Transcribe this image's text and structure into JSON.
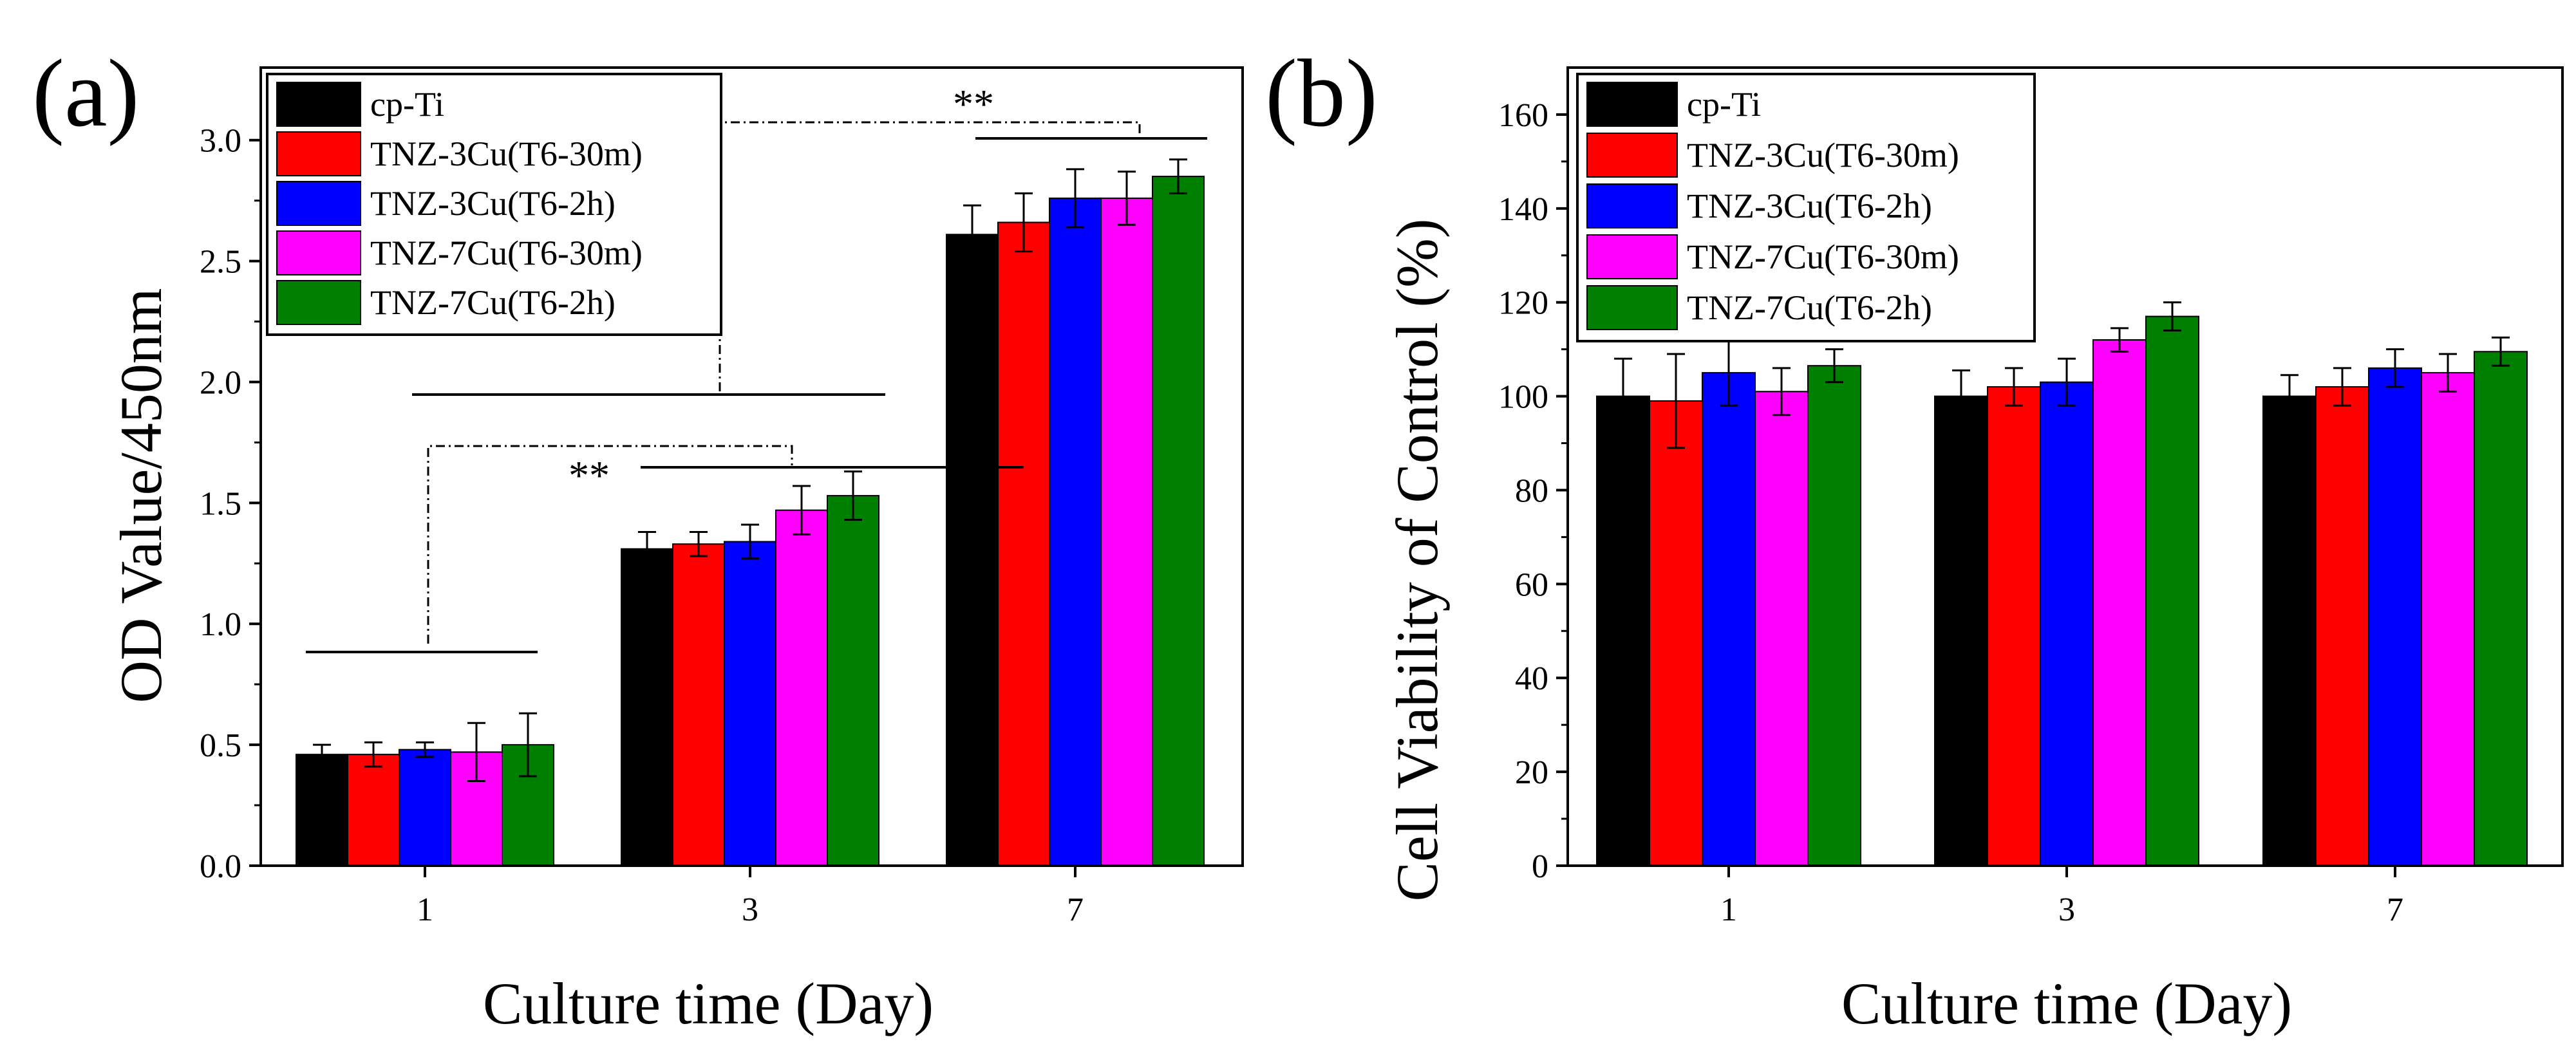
{
  "chart_data": [
    {
      "type": "bar",
      "panel_label": "(a)",
      "title": "",
      "xlabel": "Culture  time (Day)",
      "ylabel": "OD Value/450nm",
      "categories": [
        "1",
        "3",
        "7"
      ],
      "ylim": [
        0,
        3.3
      ],
      "yticks": [
        "0.0",
        "0.5",
        "1.0",
        "1.5",
        "2.0",
        "2.5",
        "3.0"
      ],
      "legend_position": "top-left",
      "series": [
        {
          "name": "cp-Ti",
          "color": "#000000",
          "values": [
            0.46,
            1.31,
            2.61
          ],
          "errors": [
            0.04,
            0.07,
            0.12
          ]
        },
        {
          "name": "TNZ-3Cu(T6-30m)",
          "color": "#ff0000",
          "values": [
            0.46,
            1.33,
            2.66
          ],
          "errors": [
            0.05,
            0.05,
            0.12
          ]
        },
        {
          "name": "TNZ-3Cu(T6-2h)",
          "color": "#0000ff",
          "values": [
            0.48,
            1.34,
            2.76
          ],
          "errors": [
            0.03,
            0.07,
            0.12
          ]
        },
        {
          "name": "TNZ-7Cu(T6-30m)",
          "color": "#ff00ff",
          "values": [
            0.47,
            1.47,
            2.76
          ],
          "errors": [
            0.12,
            0.1,
            0.11
          ]
        },
        {
          "name": "TNZ-7Cu(T6-2h)",
          "color": "#008000",
          "values": [
            0.5,
            1.53,
            2.85
          ],
          "errors": [
            0.13,
            0.1,
            0.07
          ]
        }
      ],
      "annotations": [
        "**",
        "**"
      ]
    },
    {
      "type": "bar",
      "panel_label": "(b)",
      "title": "",
      "xlabel": "Culture time (Day)",
      "ylabel": "Cell Viability of Control (%)",
      "categories": [
        "1",
        "3",
        "7"
      ],
      "ylim": [
        0,
        170
      ],
      "yticks": [
        "0",
        "20",
        "40",
        "60",
        "80",
        "100",
        "120",
        "140",
        "160"
      ],
      "legend_position": "top-left",
      "series": [
        {
          "name": "cp-Ti",
          "color": "#000000",
          "values": [
            100,
            100,
            100
          ],
          "errors": [
            8,
            5.5,
            4.5
          ]
        },
        {
          "name": "TNZ-3Cu(T6-30m)",
          "color": "#ff0000",
          "values": [
            99,
            102,
            102
          ],
          "errors": [
            10,
            4,
            4
          ]
        },
        {
          "name": "TNZ-3Cu(T6-2h)",
          "color": "#0000ff",
          "values": [
            105,
            103,
            106
          ],
          "errors": [
            7,
            5,
            4
          ]
        },
        {
          "name": "TNZ-7Cu(T6-30m)",
          "color": "#ff00ff",
          "values": [
            101,
            112,
            105
          ],
          "errors": [
            5,
            2.5,
            4
          ]
        },
        {
          "name": "TNZ-7Cu(T6-2h)",
          "color": "#008000",
          "values": [
            106.5,
            117,
            109.5
          ],
          "errors": [
            3.5,
            3,
            3
          ]
        }
      ]
    }
  ]
}
